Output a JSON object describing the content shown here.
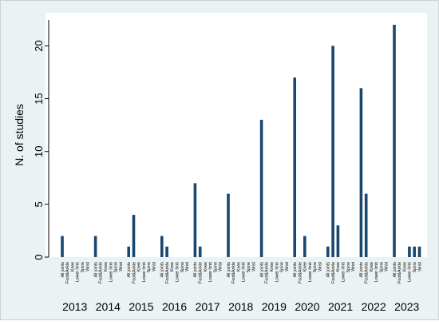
{
  "chart_data": {
    "type": "bar",
    "title": "",
    "xlabel": "",
    "ylabel": "N. of studies",
    "ylim": [
      0,
      22
    ],
    "yticks": [
      0,
      5,
      10,
      15,
      20
    ],
    "grid": false,
    "legend": "none",
    "colors": {
      "bar": "#1a476f",
      "plot_background": "#ffffff",
      "outer_background": "#eaf2f3"
    },
    "subcategories": [
      "All joints",
      "Foot&Ankle",
      "Knee",
      "Lower limb",
      "Spine",
      "Wrist"
    ],
    "groups": [
      {
        "year": "2013",
        "values": [
          2,
          0,
          0,
          0,
          0,
          0
        ]
      },
      {
        "year": "2014",
        "values": [
          2,
          0,
          0,
          0,
          0,
          0
        ]
      },
      {
        "year": "2015",
        "values": [
          1,
          4,
          0,
          0,
          0,
          0
        ]
      },
      {
        "year": "2016",
        "values": [
          2,
          1,
          0,
          0,
          0,
          0
        ]
      },
      {
        "year": "2017",
        "values": [
          7,
          1,
          0,
          0,
          0,
          0
        ]
      },
      {
        "year": "2018",
        "values": [
          6,
          0,
          0,
          0,
          0,
          0
        ]
      },
      {
        "year": "2019",
        "values": [
          13,
          0,
          0,
          0,
          0,
          0
        ]
      },
      {
        "year": "2020",
        "values": [
          17,
          0,
          2,
          0,
          0,
          0
        ]
      },
      {
        "year": "2021",
        "values": [
          1,
          20,
          3,
          0,
          0,
          0
        ]
      },
      {
        "year": "2022",
        "values": [
          16,
          6,
          0,
          0,
          0,
          0
        ]
      },
      {
        "year": "2023",
        "values": [
          22,
          0,
          0,
          1,
          1,
          1
        ]
      }
    ]
  }
}
